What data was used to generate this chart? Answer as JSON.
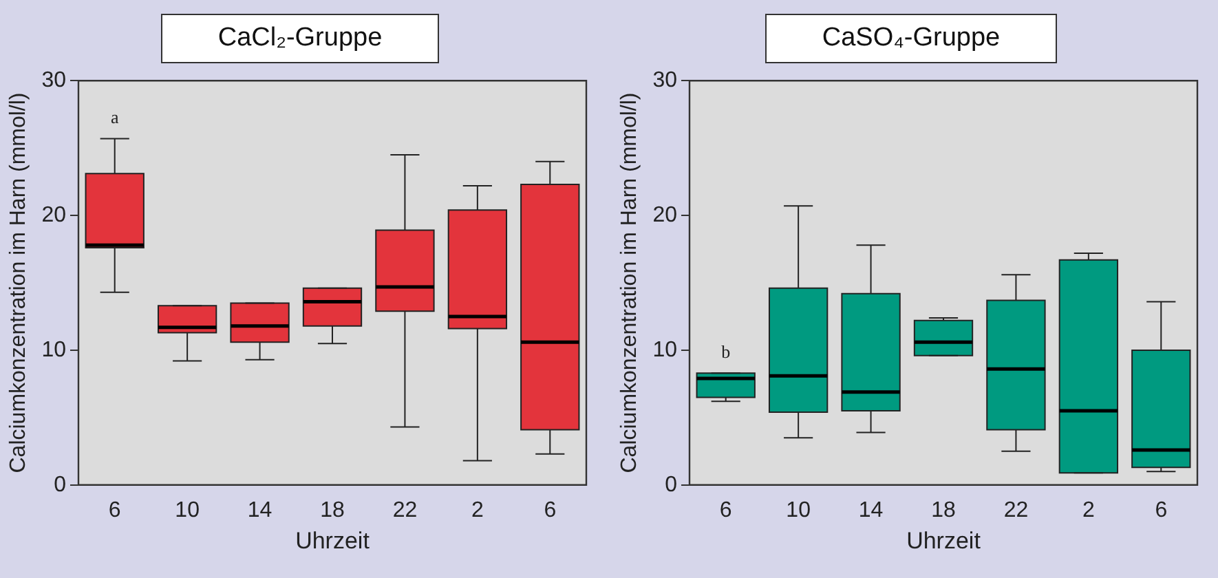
{
  "chart_data": [
    {
      "type": "box",
      "title": "CaCl₂-Gruppe",
      "xlabel": "Uhrzeit",
      "ylabel": "Calciumkonzentration im Harn (mmol/l)",
      "categories": [
        "6",
        "10",
        "14",
        "18",
        "22",
        "2",
        "6"
      ],
      "ylim": [
        0,
        30
      ],
      "yticks": [
        0,
        10,
        20,
        30
      ],
      "grid": false,
      "series": [
        {
          "color": "#e3343c",
          "boxes": [
            {
              "low": 14.3,
              "q1": 17.6,
              "median": 17.8,
              "q3": 23.1,
              "high": 25.7
            },
            {
              "low": 9.2,
              "q1": 11.3,
              "median": 11.7,
              "q3": 13.3,
              "high": 13.3
            },
            {
              "low": 9.3,
              "q1": 10.6,
              "median": 11.8,
              "q3": 13.5,
              "high": 13.5
            },
            {
              "low": 10.5,
              "q1": 11.8,
              "median": 13.6,
              "q3": 14.6,
              "high": 14.6
            },
            {
              "low": 4.3,
              "q1": 12.9,
              "median": 14.7,
              "q3": 18.9,
              "high": 24.5
            },
            {
              "low": 1.8,
              "q1": 11.6,
              "median": 12.5,
              "q3": 20.4,
              "high": 22.2
            },
            {
              "low": 2.3,
              "q1": 4.1,
              "median": 10.6,
              "q3": 22.3,
              "high": 24.0
            }
          ]
        }
      ],
      "annotations": [
        "a"
      ]
    },
    {
      "type": "box",
      "title": "CaSO₄-Gruppe",
      "xlabel": "Uhrzeit",
      "ylabel": "Calciumkonzentration im Harn (mmol/l)",
      "categories": [
        "6",
        "10",
        "14",
        "18",
        "22",
        "2",
        "6"
      ],
      "ylim": [
        0,
        30
      ],
      "yticks": [
        0,
        10,
        20,
        30
      ],
      "grid": false,
      "series": [
        {
          "color": "#009a80",
          "boxes": [
            {
              "low": 6.2,
              "q1": 6.5,
              "median": 7.9,
              "q3": 8.3,
              "high": 8.3
            },
            {
              "low": 3.5,
              "q1": 5.4,
              "median": 8.1,
              "q3": 14.6,
              "high": 20.7
            },
            {
              "low": 3.9,
              "q1": 5.5,
              "median": 6.9,
              "q3": 14.2,
              "high": 17.8
            },
            {
              "low": 9.6,
              "q1": 9.6,
              "median": 10.6,
              "q3": 12.2,
              "high": 12.4
            },
            {
              "low": 2.5,
              "q1": 4.1,
              "median": 8.6,
              "q3": 13.7,
              "high": 15.6
            },
            {
              "low": 0.9,
              "q1": 0.9,
              "median": 5.5,
              "q3": 16.7,
              "high": 17.2
            },
            {
              "low": 1.0,
              "q1": 1.3,
              "median": 2.6,
              "q3": 10.0,
              "high": 13.6
            }
          ]
        }
      ],
      "annotations": [
        "b"
      ]
    }
  ]
}
